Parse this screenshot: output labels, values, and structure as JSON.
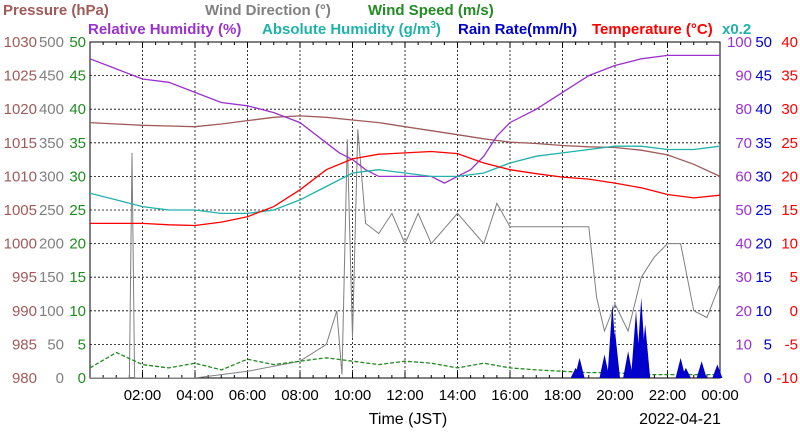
{
  "chart_data": {
    "type": "line",
    "date": "2022-04-21",
    "xlabel": "Time (JST)",
    "x_ticks": [
      "02:00",
      "04:00",
      "06:00",
      "08:00",
      "10:00",
      "12:00",
      "14:00",
      "16:00",
      "18:00",
      "20:00",
      "22:00",
      "00:00"
    ],
    "legend": [
      {
        "text": "Pressure (hPa)",
        "color": "#a05a5a"
      },
      {
        "text": "Wind Direction (°)",
        "color": "#808080"
      },
      {
        "text": "Wind Speed (m/s)",
        "color": "#228b22"
      },
      {
        "text": "Relative Humidity (%)",
        "color": "#9932cc"
      },
      {
        "text": "Absolute Humidity (g/m",
        "sup": "3",
        "close": ")",
        "color": "#20b2aa"
      },
      {
        "text": "Rain Rate(mm/h)",
        "color": "#0000cd"
      },
      {
        "text": "Temperature (°C)",
        "color": "#ff0000"
      },
      {
        "text": "x0.2",
        "color": "#20b2aa"
      }
    ],
    "axes": {
      "pressure": {
        "color": "#a05a5a",
        "ticks": [
          980,
          985,
          990,
          995,
          1000,
          1005,
          1010,
          1015,
          1020,
          1025,
          1030
        ],
        "range": [
          980,
          1030
        ]
      },
      "wind_dir": {
        "color": "#808080",
        "ticks": [
          0,
          50,
          100,
          150,
          200,
          250,
          300,
          350,
          400,
          450,
          500
        ],
        "range": [
          0,
          500
        ]
      },
      "wind_speed": {
        "color": "#228b22",
        "ticks": [
          0,
          5,
          10,
          15,
          20,
          25,
          30,
          35,
          40,
          45,
          50
        ],
        "range": [
          0,
          50
        ]
      },
      "humidity": {
        "color": "#9932cc",
        "ticks": [
          0,
          10,
          20,
          30,
          40,
          50,
          60,
          70,
          80,
          90,
          100
        ],
        "range": [
          0,
          100
        ]
      },
      "rain": {
        "color": "#0000cd",
        "ticks": [
          0,
          5,
          10,
          15,
          20,
          25,
          30,
          35,
          40,
          45,
          50
        ],
        "range": [
          0,
          50
        ]
      },
      "temp": {
        "color": "#ff0000",
        "ticks": [
          -10,
          -5,
          0,
          5,
          10,
          15,
          20,
          25,
          30,
          35,
          40
        ],
        "range": [
          -10,
          40
        ]
      }
    },
    "x_range_hours": [
      0,
      24
    ],
    "grid": true,
    "series": [
      {
        "key": "pressure",
        "color": "#a05a5a",
        "x": [
          0,
          1,
          2,
          3,
          4,
          5,
          6,
          7,
          8,
          9,
          10,
          11,
          12,
          13,
          14,
          15,
          16,
          17,
          18,
          19,
          20,
          21,
          22,
          23,
          24
        ],
        "y": [
          1018,
          1017.8,
          1017.6,
          1017.5,
          1017.4,
          1017.8,
          1018.3,
          1018.8,
          1019,
          1018.8,
          1018.4,
          1018,
          1017.4,
          1016.8,
          1016.2,
          1015.6,
          1015.1,
          1014.9,
          1014.6,
          1014.4,
          1014.3,
          1013.9,
          1013.2,
          1011.8,
          1010
        ]
      },
      {
        "key": "wind_dir",
        "color": "#808080",
        "x": [
          0,
          1.5,
          1.6,
          1.7,
          2,
          3,
          4,
          6,
          8,
          9,
          9.4,
          9.6,
          9.8,
          10,
          10.2,
          10.5,
          11,
          11.5,
          12,
          12.5,
          13,
          14,
          15,
          15.5,
          16,
          16.5,
          17,
          18,
          19,
          19.3,
          19.6,
          20,
          20.5,
          21,
          21.5,
          22,
          22.5,
          23,
          23.5,
          24
        ],
        "y": [
          0,
          0,
          335,
          0,
          0,
          0,
          0,
          10,
          25,
          50,
          100,
          5,
          355,
          60,
          370,
          230,
          215,
          245,
          200,
          245,
          200,
          245,
          200,
          260,
          225,
          225,
          225,
          225,
          225,
          120,
          70,
          110,
          70,
          150,
          180,
          200,
          200,
          100,
          90,
          140
        ]
      },
      {
        "key": "wind_speed",
        "color": "#228b22",
        "x": [
          0,
          1,
          2,
          3,
          4,
          5,
          6,
          7,
          8,
          9,
          10,
          11,
          12,
          13,
          14,
          15,
          16,
          17,
          18,
          19,
          20,
          21,
          22,
          23,
          24
        ],
        "y": [
          1.5,
          3.8,
          2,
          1.5,
          2.2,
          1.2,
          2.8,
          2,
          2.5,
          3,
          2.5,
          2,
          2.5,
          2.2,
          1.5,
          2.2,
          1.5,
          1.2,
          1,
          0.8,
          0.8,
          0.5,
          0.5,
          0.5,
          0.5
        ]
      },
      {
        "key": "humidity",
        "color": "#9932cc",
        "x": [
          0,
          1,
          2,
          3,
          4,
          5,
          6,
          7,
          8,
          9,
          9.5,
          10,
          10.5,
          11,
          12,
          13,
          13.5,
          14,
          14.5,
          15,
          15.5,
          16,
          17,
          18,
          19,
          20,
          21,
          22,
          23,
          24
        ],
        "y": [
          95,
          92,
          89,
          88,
          85,
          82,
          81,
          79,
          76,
          70,
          67,
          65,
          62,
          60,
          60,
          60,
          58,
          60,
          62,
          66,
          72,
          76,
          80,
          85,
          90,
          93,
          95,
          96,
          96,
          96
        ]
      },
      {
        "key": "abs_humidity",
        "color": "#20b2aa",
        "x": [
          0,
          1,
          2,
          3,
          4,
          5,
          6,
          7,
          8,
          9,
          10,
          11,
          12,
          13,
          14,
          15,
          16,
          17,
          18,
          19,
          20,
          21,
          22,
          23,
          24
        ],
        "y": [
          55,
          53,
          51,
          50,
          50,
          49,
          49,
          50,
          53,
          57,
          61,
          62,
          61,
          60,
          60,
          61,
          64,
          66,
          67,
          68,
          69,
          69,
          68,
          68,
          69
        ]
      },
      {
        "key": "temp",
        "color": "#ff0000",
        "x": [
          0,
          1,
          2,
          3,
          4,
          5,
          6,
          7,
          8,
          9,
          10,
          11,
          12,
          13,
          14,
          15,
          16,
          17,
          18,
          19,
          20,
          21,
          22,
          23,
          24
        ],
        "y": [
          13,
          13,
          13,
          12.8,
          12.7,
          13.2,
          14,
          15.5,
          18,
          21,
          22.6,
          23.3,
          23.5,
          23.7,
          23.4,
          22,
          21,
          20.4,
          19.9,
          19.6,
          19,
          18.3,
          17.3,
          16.8,
          17.2
        ]
      }
    ],
    "rain_events": [
      {
        "x": 18.5,
        "h": 1.5
      },
      {
        "x": 18.65,
        "h": 3
      },
      {
        "x": 19.6,
        "h": 3.5
      },
      {
        "x": 19.9,
        "h": 11
      },
      {
        "x": 20.0,
        "h": 7
      },
      {
        "x": 20.5,
        "h": 4
      },
      {
        "x": 20.8,
        "h": 10
      },
      {
        "x": 21.0,
        "h": 12
      },
      {
        "x": 21.15,
        "h": 8
      },
      {
        "x": 22.5,
        "h": 3
      },
      {
        "x": 22.7,
        "h": 1.5
      },
      {
        "x": 23.3,
        "h": 2.5
      },
      {
        "x": 23.9,
        "h": 2
      }
    ]
  }
}
